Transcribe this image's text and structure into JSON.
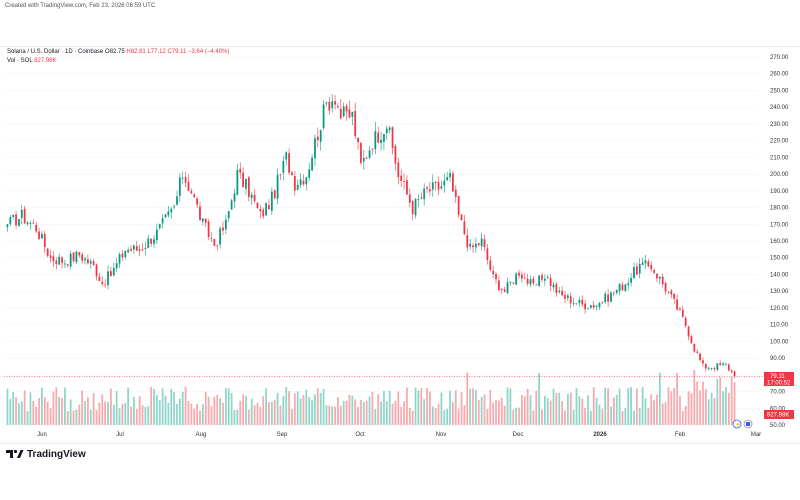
{
  "header": {
    "created": "Created with TradingView.com, Feb 23, 2026 06:59 UTC"
  },
  "legend": {
    "symbol": "Solana / U.S. Dollar · 1D · Coinbase",
    "open": "O82.75",
    "high": "H82.81",
    "low": "L77.12",
    "close": "C79.11",
    "change": "−3.64 (−4.40%)",
    "vol_label": "Vol · SOL",
    "vol_value": "827.98K"
  },
  "price_badge": {
    "price": "79.11",
    "countdown": "17:00:52"
  },
  "volume_badge": {
    "value": "827.98K"
  },
  "brand": {
    "name": "TradingView"
  },
  "colors": {
    "up": "#089981",
    "down": "#f23645",
    "up_vol": "#8fd6c9",
    "down_vol": "#f7a9ad"
  },
  "chart_data": {
    "type": "candlestick",
    "title": "Solana / U.S. Dollar · 1D · Coinbase",
    "ylim": [
      50,
      270
    ],
    "y_ticks": [
      "270.00",
      "260.00",
      "250.00",
      "240.00",
      "230.00",
      "220.00",
      "210.00",
      "200.00",
      "190.00",
      "180.00",
      "170.00",
      "160.00",
      "150.00",
      "140.00",
      "130.00",
      "120.00",
      "110.00",
      "100.00",
      "90.00",
      "80.00",
      "70.00",
      "60.00",
      "50.00"
    ],
    "x_tick_labels": [
      "Jun",
      "Jul",
      "Aug",
      "Sep",
      "Oct",
      "Nov",
      "Dec",
      "2026",
      "Feb",
      "Mar"
    ],
    "close_anchors": [
      [
        0,
        170
      ],
      [
        5,
        175
      ],
      [
        10,
        168
      ],
      [
        15,
        150
      ],
      [
        20,
        148
      ],
      [
        25,
        152
      ],
      [
        30,
        145
      ],
      [
        33,
        135
      ],
      [
        36,
        140
      ],
      [
        41,
        155
      ],
      [
        46,
        155
      ],
      [
        52,
        165
      ],
      [
        58,
        180
      ],
      [
        61,
        200
      ],
      [
        64,
        190
      ],
      [
        68,
        170
      ],
      [
        72,
        158
      ],
      [
        76,
        170
      ],
      [
        80,
        200
      ],
      [
        84,
        190
      ],
      [
        88,
        175
      ],
      [
        92,
        185
      ],
      [
        97,
        210
      ],
      [
        100,
        195
      ],
      [
        104,
        200
      ],
      [
        108,
        225
      ],
      [
        111,
        242
      ],
      [
        114,
        247
      ],
      [
        116,
        235
      ],
      [
        120,
        235
      ],
      [
        123,
        205
      ],
      [
        127,
        220
      ],
      [
        132,
        230
      ],
      [
        136,
        200
      ],
      [
        141,
        180
      ],
      [
        146,
        190
      ],
      [
        150,
        192
      ],
      [
        154,
        197
      ],
      [
        157,
        175
      ],
      [
        161,
        155
      ],
      [
        165,
        160
      ],
      [
        169,
        138
      ],
      [
        173,
        130
      ],
      [
        178,
        142
      ],
      [
        183,
        132
      ],
      [
        187,
        140
      ],
      [
        192,
        128
      ],
      [
        196,
        125
      ],
      [
        200,
        122
      ],
      [
        205,
        122
      ],
      [
        210,
        128
      ],
      [
        215,
        135
      ],
      [
        220,
        145
      ],
      [
        224,
        145
      ],
      [
        229,
        132
      ],
      [
        233,
        120
      ],
      [
        236,
        110
      ],
      [
        239,
        96
      ],
      [
        242,
        85
      ],
      [
        246,
        85
      ],
      [
        250,
        86
      ],
      [
        253,
        79.11
      ]
    ],
    "volume_scale": "relative 0–1"
  }
}
